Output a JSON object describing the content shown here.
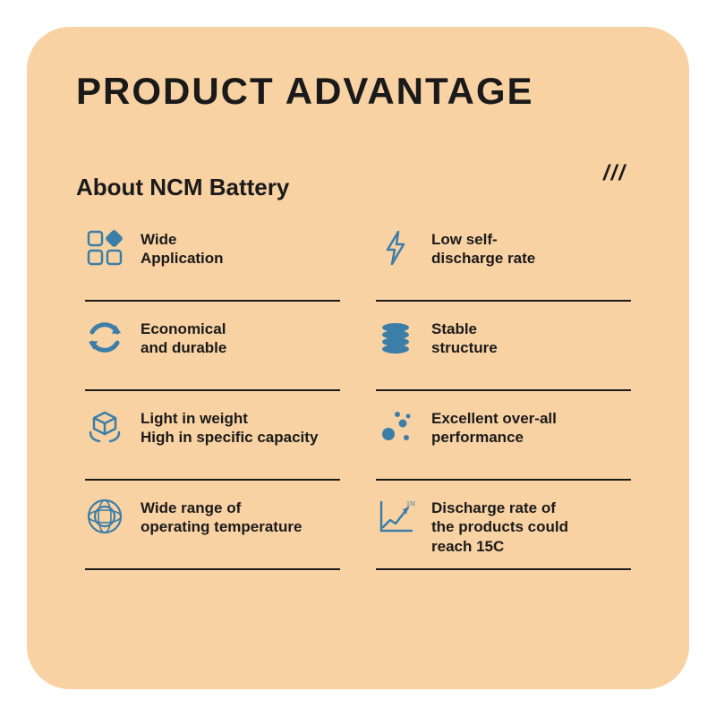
{
  "colors": {
    "card_bg": "#f9d2a3",
    "title": "#1a1a1a",
    "text": "#1a1a1a",
    "icon": "#3b7ea8",
    "divider": "#1a1a1a",
    "decoration": "#1a1a1a"
  },
  "typography": {
    "title_size": 42,
    "subtitle_size": 26,
    "label_size": 17,
    "decoration_size": 24
  },
  "title": "PRODUCT ADVANTAGE",
  "decoration": "///",
  "subtitle": "About NCM Battery",
  "features": [
    {
      "icon": "grid-icon",
      "label": "Wide\nApplication"
    },
    {
      "icon": "bolt-icon",
      "label": "Low self-\ndischarge rate"
    },
    {
      "icon": "recycle-icon",
      "label": "Economical\nand durable"
    },
    {
      "icon": "stack-icon",
      "label": "Stable\nstructure"
    },
    {
      "icon": "box-icon",
      "label": "Light in weight\nHigh in specific capacity"
    },
    {
      "icon": "dots-icon",
      "label": "Excellent over-all\nperformance"
    },
    {
      "icon": "target-icon",
      "label": "Wide range of\noperating temperature"
    },
    {
      "icon": "chart-icon",
      "label": "Discharge rate of\nthe products could\nreach 15C"
    }
  ]
}
